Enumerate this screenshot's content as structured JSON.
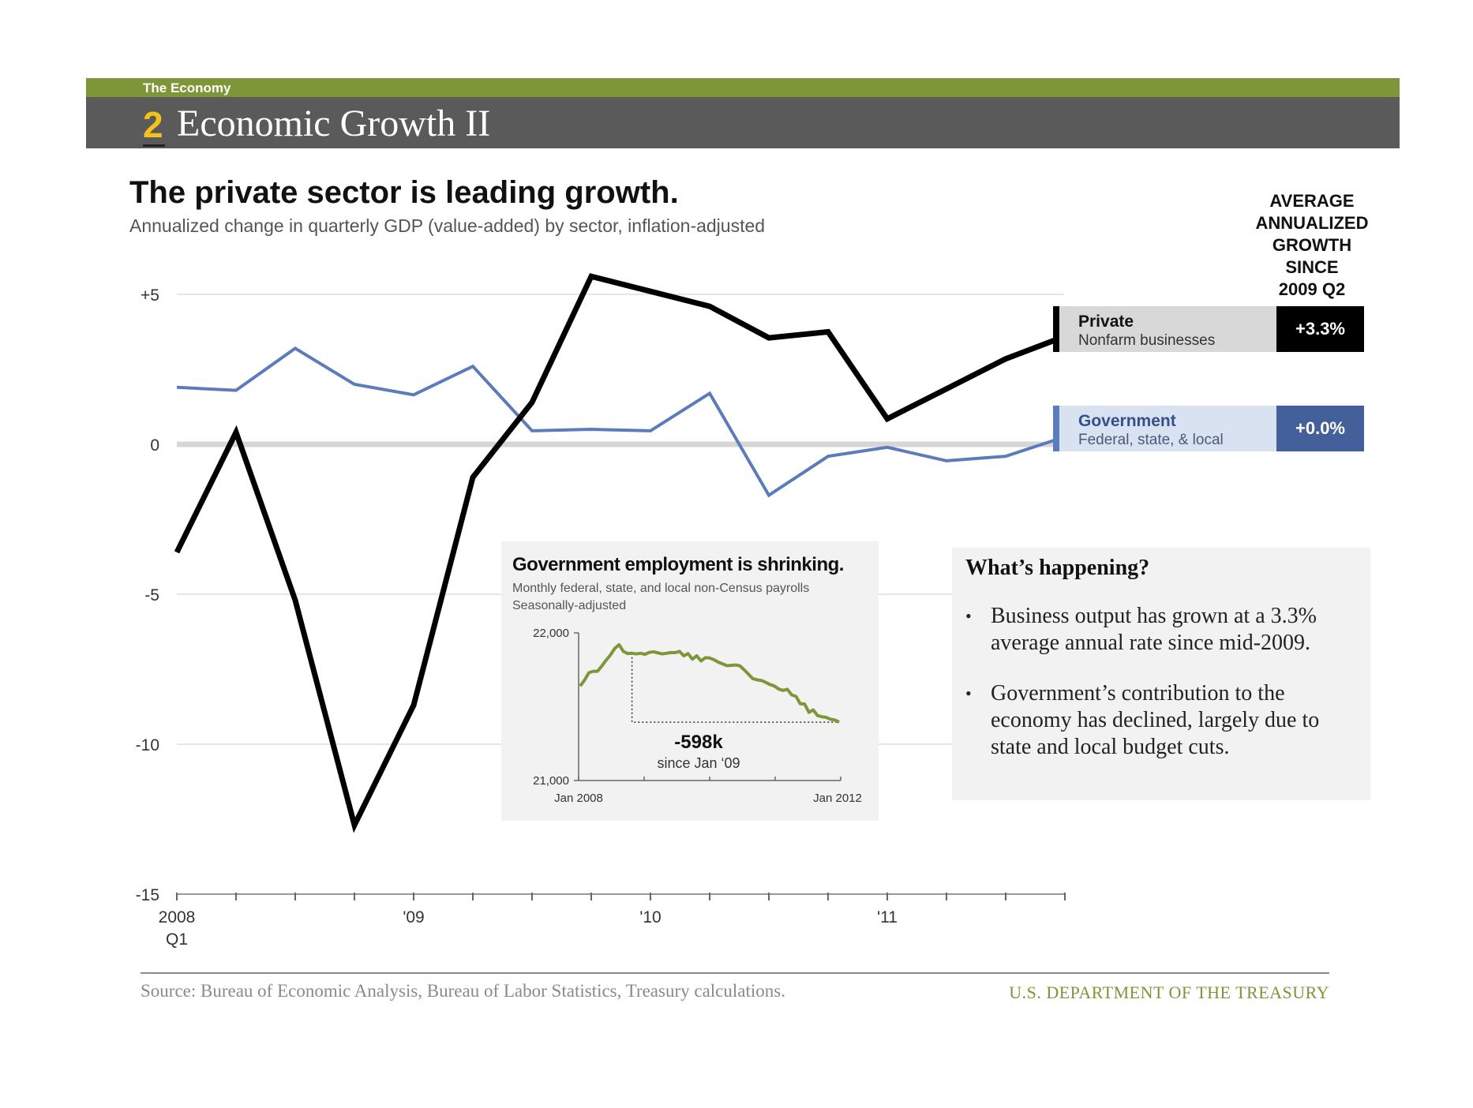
{
  "header": {
    "kicker": "The Economy",
    "number": "2",
    "title": "Economic Growth II",
    "accent_green": "#7d9638",
    "band_gray": "#5a5a5a",
    "number_color": "#f2c31b"
  },
  "headline": "The private sector is leading growth.",
  "subhead": "Annualized change in quarterly GDP (value-added) by sector, inflation-adjusted",
  "average_header": [
    "AVERAGE",
    "ANNUALIZED",
    "GROWTH",
    "SINCE",
    "2009 Q2"
  ],
  "legend": [
    {
      "name": "Private",
      "desc": "Nonfarm businesses",
      "value": "+3.3%",
      "color": "#000000"
    },
    {
      "name": "Government",
      "desc": "Federal, state, & local",
      "value": "+0.0%",
      "color": "#5b7bbb"
    }
  ],
  "chart_data": [
    {
      "type": "line",
      "title": "The private sector is leading growth.",
      "subtitle": "Annualized change in quarterly GDP (value-added) by sector, inflation-adjusted",
      "x": [
        "2008 Q1",
        "2008 Q2",
        "2008 Q3",
        "2008 Q4",
        "2009 Q1",
        "2009 Q2",
        "2009 Q3",
        "2009 Q4",
        "2010 Q1",
        "2010 Q2",
        "2010 Q3",
        "2010 Q4",
        "2011 Q1",
        "2011 Q2",
        "2011 Q3",
        "2011 Q4"
      ],
      "x_tick_labels": [
        {
          "index": 0,
          "line1": "2008",
          "line2": "Q1"
        },
        {
          "index": 4,
          "line1": "'09",
          "line2": ""
        },
        {
          "index": 8,
          "line1": "'10",
          "line2": ""
        },
        {
          "index": 12,
          "line1": "'11",
          "line2": ""
        }
      ],
      "y_ticks": [
        {
          "value": 5,
          "label": "+5"
        },
        {
          "value": 0,
          "label": "0"
        },
        {
          "value": -5,
          "label": "-5"
        },
        {
          "value": -10,
          "label": "-10"
        },
        {
          "value": -15,
          "label": "-15"
        }
      ],
      "ylim": [
        -15,
        5.6
      ],
      "grid": true,
      "series": [
        {
          "name": "Government",
          "color": "#5b7bbb",
          "values": [
            1.9,
            1.8,
            3.2,
            2.0,
            1.65,
            2.6,
            0.45,
            0.5,
            0.45,
            1.7,
            -1.7,
            -0.4,
            -0.1,
            -0.55,
            -0.4,
            0.25
          ]
        },
        {
          "name": "Private",
          "color": "#000000",
          "values": [
            -3.6,
            0.4,
            -5.2,
            -12.7,
            -8.7,
            -1.1,
            1.4,
            5.6,
            5.1,
            4.6,
            3.55,
            3.75,
            0.85,
            1.85,
            2.85,
            3.6
          ]
        }
      ]
    },
    {
      "type": "line",
      "title": "Government employment is shrinking.",
      "subtitle": "Monthly federal, state, and local non-Census payrolls",
      "subtitle2": "Seasonally-adjusted",
      "ylim": [
        21000,
        22000
      ],
      "y_ticks": [
        {
          "value": 22000,
          "label": "22,000"
        },
        {
          "value": 21000,
          "label": "21,000"
        }
      ],
      "x_labels": {
        "start": "Jan 2008",
        "end": "Jan 2012"
      },
      "annotation": {
        "value": "-598k",
        "text": "since Jan ‘09"
      },
      "series": [
        {
          "name": "Payrolls",
          "color": "#7d9638",
          "values": [
            21640,
            21680,
            21730,
            21740,
            21740,
            21775,
            21815,
            21850,
            21895,
            21920,
            21875,
            21860,
            21862,
            21858,
            21862,
            21855,
            21868,
            21872,
            21865,
            21858,
            21862,
            21867,
            21866,
            21875,
            21845,
            21860,
            21822,
            21845,
            21810,
            21832,
            21830,
            21818,
            21802,
            21790,
            21778,
            21780,
            21783,
            21777,
            21750,
            21720,
            21690,
            21682,
            21678,
            21665,
            21650,
            21640,
            21620,
            21610,
            21618,
            21580,
            21570,
            21520,
            21518,
            21462,
            21478,
            21440,
            21432,
            21428,
            21415,
            21410,
            21395
          ]
        }
      ]
    }
  ],
  "inset_colors": {
    "line": "#7d9638"
  },
  "happening": {
    "heading": "What’s happening?",
    "bullets": [
      "Business output has grown at a 3.3% average annual rate since mid-2009.",
      "Government’s contribution to the economy has declined, largely due to state and local budget cuts."
    ]
  },
  "footer": {
    "source": "Source: Bureau of Economic Analysis, Bureau of Labor Statistics, Treasury calculations.",
    "dept": "U.S. DEPARTMENT OF THE TREASURY"
  }
}
